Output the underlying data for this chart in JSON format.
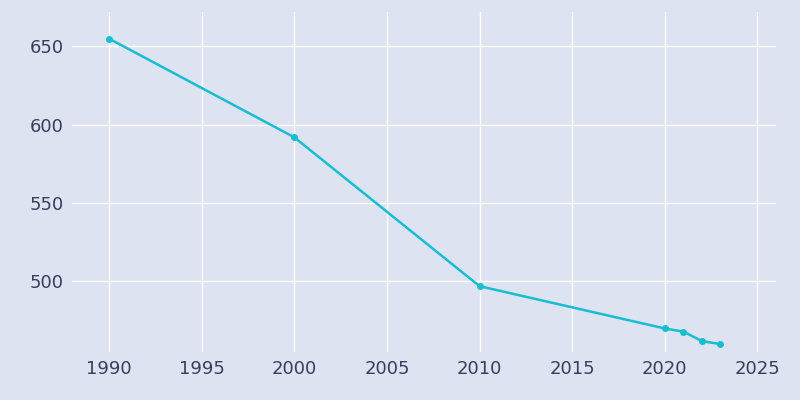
{
  "years": [
    1990,
    2000,
    2010,
    2020,
    2021,
    2022,
    2023
  ],
  "population": [
    655,
    592,
    497,
    470,
    468,
    462,
    460
  ],
  "line_color": "#17BECF",
  "marker_style": "o",
  "marker_size": 4,
  "line_width": 1.8,
  "background_color": "#dde3f0",
  "plot_bg_color": "#dde3f0",
  "grid_color": "#ffffff",
  "axis_label_color": "#3a3d5c",
  "xlim": [
    1988,
    2026
  ],
  "ylim": [
    455,
    672
  ],
  "xticks": [
    1990,
    1995,
    2000,
    2005,
    2010,
    2015,
    2020,
    2025
  ],
  "yticks": [
    500,
    550,
    600,
    650
  ],
  "tick_fontsize": 13
}
